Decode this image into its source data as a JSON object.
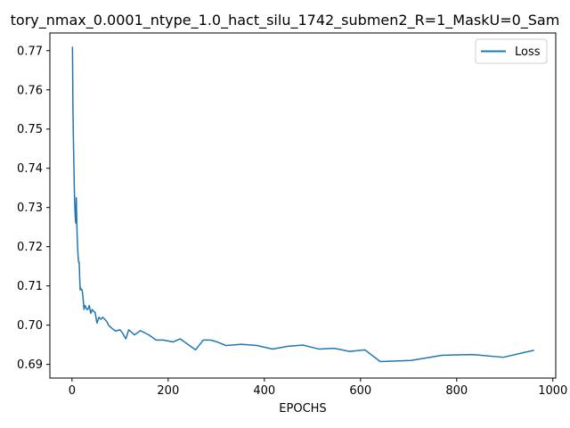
{
  "chart_data": {
    "type": "line",
    "title": "tory_nmax_0.0001_ntype_1.0_hact_silu_1742_submen2_R=1_MaskU=0_Sam",
    "xlabel": "EPOCHS",
    "ylabel": "",
    "xlim": [
      -46,
      1006
    ],
    "ylim": [
      0.6865,
      0.7745
    ],
    "xticks": [
      0,
      200,
      400,
      600,
      800,
      1000
    ],
    "yticks": [
      0.69,
      0.7,
      0.71,
      0.72,
      0.73,
      0.74,
      0.75,
      0.76,
      0.77
    ],
    "grid": false,
    "legend_position": "top-right",
    "series": [
      {
        "name": "Loss",
        "color": "#1f77b4",
        "x": [
          1,
          2,
          3,
          4,
          5,
          6,
          7,
          8,
          9,
          10,
          11,
          12,
          13,
          14,
          15,
          16,
          17,
          18,
          19,
          20,
          21,
          23,
          25,
          27,
          29,
          31,
          33,
          36,
          39,
          42,
          45,
          48,
          52,
          56,
          60,
          64,
          68,
          72,
          76,
          80,
          90,
          100,
          105,
          112,
          118,
          130,
          142,
          160,
          175,
          190,
          210,
          225,
          257,
          273,
          288,
          300,
          320,
          352,
          385,
          417,
          449,
          481,
          513,
          545,
          577,
          609,
          641,
          705,
          769,
          833,
          897,
          961
        ],
        "y": [
          0.771,
          0.755,
          0.747,
          0.74,
          0.734,
          0.73,
          0.727,
          0.726,
          0.7325,
          0.726,
          0.722,
          0.719,
          0.717,
          0.716,
          0.716,
          0.712,
          0.709,
          0.7095,
          0.709,
          0.709,
          0.709,
          0.707,
          0.704,
          0.705,
          0.7045,
          0.704,
          0.704,
          0.705,
          0.703,
          0.704,
          0.7035,
          0.7033,
          0.7005,
          0.702,
          0.7015,
          0.702,
          0.7015,
          0.701,
          0.7,
          0.6995,
          0.6985,
          0.6988,
          0.698,
          0.6965,
          0.6988,
          0.6975,
          0.6986,
          0.6975,
          0.6962,
          0.6962,
          0.6957,
          0.6965,
          0.6937,
          0.6962,
          0.6962,
          0.6958,
          0.6948,
          0.6951,
          0.6948,
          0.6939,
          0.6946,
          0.6949,
          0.6939,
          0.6941,
          0.6933,
          0.6937,
          0.6907,
          0.691,
          0.6923,
          0.6925,
          0.6918,
          0.6936
        ]
      }
    ]
  }
}
